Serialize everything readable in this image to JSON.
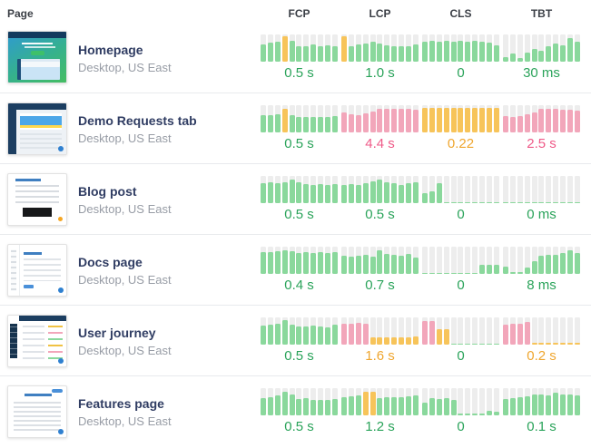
{
  "header": {
    "page_label": "Page",
    "metric_labels": [
      "FCP",
      "LCP",
      "CLS",
      "TBT"
    ]
  },
  "palette": {
    "bar_green": "#8ad89c",
    "bar_orange": "#f7c45a",
    "bar_pink": "#f2a6ba",
    "bar_track": "#ededed",
    "value_green": "#2aa35a",
    "value_orange": "#efa62f",
    "value_pink": "#ef5a88",
    "title_navy": "#303d63",
    "subtitle_gray": "#979ca5"
  },
  "rows": [
    {
      "title": "Homepage",
      "subtitle": "Desktop, US East",
      "thumbnail": "homepage",
      "metrics": [
        {
          "label": "FCP",
          "value": "0.5 s",
          "value_color": "green",
          "bar_colors": [
            "g",
            "g",
            "g",
            "o",
            "g",
            "g",
            "g",
            "g",
            "g",
            "g",
            "g"
          ],
          "bar_heights": [
            0.62,
            0.7,
            0.74,
            0.92,
            0.76,
            0.55,
            0.58,
            0.62,
            0.55,
            0.6,
            0.57
          ]
        },
        {
          "label": "LCP",
          "value": "1.0 s",
          "value_color": "green",
          "bar_colors": [
            "o",
            "g",
            "g",
            "g",
            "g",
            "g",
            "g",
            "g",
            "g",
            "g",
            "g"
          ],
          "bar_heights": [
            0.92,
            0.58,
            0.62,
            0.68,
            0.72,
            0.68,
            0.6,
            0.55,
            0.55,
            0.58,
            0.63
          ]
        },
        {
          "label": "CLS",
          "value": "0",
          "value_color": "green",
          "bar_colors": "g",
          "bar_heights": [
            0.72,
            0.75,
            0.72,
            0.75,
            0.72,
            0.75,
            0.72,
            0.75,
            0.72,
            0.7,
            0.6
          ]
        },
        {
          "label": "TBT",
          "value": "30 ms",
          "value_color": "green",
          "bar_colors": "g",
          "bar_heights": [
            0.18,
            0.3,
            0.12,
            0.32,
            0.45,
            0.4,
            0.58,
            0.65,
            0.6,
            0.88,
            0.72
          ]
        }
      ]
    },
    {
      "title": "Demo Requests tab",
      "subtitle": "Desktop, US East",
      "thumbnail": "demo",
      "metrics": [
        {
          "label": "FCP",
          "value": "0.5 s",
          "value_color": "green",
          "bar_colors": [
            "g",
            "g",
            "g",
            "o",
            "g",
            "g",
            "g",
            "g",
            "g",
            "g",
            "g"
          ],
          "bar_heights": [
            0.62,
            0.62,
            0.68,
            0.85,
            0.62,
            0.55,
            0.58,
            0.55,
            0.55,
            0.58,
            0.6
          ]
        },
        {
          "label": "LCP",
          "value": "4.4 s",
          "value_color": "pink",
          "bar_colors": "p",
          "bar_heights": [
            0.72,
            0.68,
            0.62,
            0.7,
            0.78,
            0.88,
            0.88,
            0.88,
            0.86,
            0.86,
            0.84
          ]
        },
        {
          "label": "CLS",
          "value": "0.22",
          "value_color": "orange",
          "bar_colors": "o",
          "bar_heights": [
            0.9,
            0.9,
            0.9,
            0.9,
            0.9,
            0.9,
            0.9,
            0.9,
            0.9,
            0.9,
            0.9
          ]
        },
        {
          "label": "TBT",
          "value": "2.5 s",
          "value_color": "pink",
          "bar_colors": "p",
          "bar_heights": [
            0.6,
            0.55,
            0.6,
            0.65,
            0.72,
            0.85,
            0.85,
            0.85,
            0.82,
            0.82,
            0.8
          ]
        }
      ]
    },
    {
      "title": "Blog post",
      "subtitle": "Desktop, US East",
      "thumbnail": "blog",
      "metrics": [
        {
          "label": "FCP",
          "value": "0.5 s",
          "value_color": "green",
          "bar_colors": "g",
          "bar_heights": [
            0.72,
            0.75,
            0.72,
            0.78,
            0.88,
            0.75,
            0.7,
            0.68,
            0.7,
            0.65,
            0.7
          ]
        },
        {
          "label": "LCP",
          "value": "0.5 s",
          "value_color": "green",
          "bar_colors": "g",
          "bar_heights": [
            0.68,
            0.7,
            0.68,
            0.72,
            0.8,
            0.85,
            0.78,
            0.72,
            0.68,
            0.72,
            0.75
          ]
        },
        {
          "label": "CLS",
          "value": "0",
          "value_color": "green",
          "bar_colors": "g",
          "bar_heights": [
            0.38,
            0.42,
            0.72,
            0.03,
            0.03,
            0.03,
            0.03,
            0.03,
            0.03,
            0.03,
            0.03
          ]
        },
        {
          "label": "TBT",
          "value": "0 ms",
          "value_color": "green",
          "bar_colors": "g",
          "bar_heights": [
            0.03,
            0.03,
            0.03,
            0.03,
            0.03,
            0.03,
            0.03,
            0.03,
            0.03,
            0.03,
            0.03
          ]
        }
      ]
    },
    {
      "title": "Docs page",
      "subtitle": "Desktop, US East",
      "thumbnail": "docs",
      "metrics": [
        {
          "label": "FCP",
          "value": "0.4 s",
          "value_color": "green",
          "bar_colors": "g",
          "bar_heights": [
            0.8,
            0.8,
            0.82,
            0.86,
            0.82,
            0.78,
            0.8,
            0.78,
            0.8,
            0.78,
            0.8
          ]
        },
        {
          "label": "LCP",
          "value": "0.7 s",
          "value_color": "green",
          "bar_colors": "g",
          "bar_heights": [
            0.68,
            0.62,
            0.65,
            0.7,
            0.62,
            0.85,
            0.72,
            0.7,
            0.68,
            0.72,
            0.6
          ]
        },
        {
          "label": "CLS",
          "value": "0",
          "value_color": "green",
          "bar_colors": "g",
          "bar_heights": [
            0.03,
            0.03,
            0.03,
            0.03,
            0.03,
            0.03,
            0.03,
            0.03,
            0.32,
            0.32,
            0.32
          ]
        },
        {
          "label": "TBT",
          "value": "8 ms",
          "value_color": "green",
          "bar_colors": "g",
          "bar_heights": [
            0.25,
            0.05,
            0.05,
            0.22,
            0.45,
            0.65,
            0.7,
            0.7,
            0.78,
            0.88,
            0.75
          ]
        }
      ]
    },
    {
      "title": "User journey",
      "subtitle": "Desktop, US East",
      "thumbnail": "journey",
      "metrics": [
        {
          "label": "FCP",
          "value": "0.5 s",
          "value_color": "green",
          "bar_colors": "g",
          "bar_heights": [
            0.7,
            0.72,
            0.78,
            0.9,
            0.72,
            0.65,
            0.68,
            0.7,
            0.65,
            0.62,
            0.72
          ]
        },
        {
          "label": "LCP",
          "value": "1.6 s",
          "value_color": "orange",
          "bar_colors": [
            "p",
            "p",
            "p",
            "p",
            "o",
            "o",
            "o",
            "o",
            "o",
            "o",
            "o"
          ],
          "bar_heights": [
            0.78,
            0.78,
            0.8,
            0.78,
            0.25,
            0.25,
            0.25,
            0.25,
            0.25,
            0.28,
            0.3
          ]
        },
        {
          "label": "CLS",
          "value": "0",
          "value_color": "green",
          "bar_colors": [
            "p",
            "p",
            "o",
            "o",
            "g",
            "g",
            "g",
            "g",
            "g",
            "g",
            "g"
          ],
          "bar_heights": [
            0.88,
            0.85,
            0.55,
            0.55,
            0.03,
            0.03,
            0.03,
            0.03,
            0.03,
            0.03,
            0.03
          ]
        },
        {
          "label": "TBT",
          "value": "0.2 s",
          "value_color": "orange",
          "bar_colors": [
            "p",
            "p",
            "p",
            "p",
            "o",
            "o",
            "o",
            "o",
            "o",
            "o",
            "o"
          ],
          "bar_heights": [
            0.72,
            0.75,
            0.78,
            0.82,
            0.08,
            0.08,
            0.08,
            0.08,
            0.08,
            0.08,
            0.08
          ]
        }
      ]
    },
    {
      "title": "Features page",
      "subtitle": "Desktop, US East",
      "thumbnail": "features",
      "metrics": [
        {
          "label": "FCP",
          "value": "0.5 s",
          "value_color": "green",
          "bar_colors": "g",
          "bar_heights": [
            0.62,
            0.68,
            0.72,
            0.88,
            0.78,
            0.6,
            0.62,
            0.58,
            0.55,
            0.58,
            0.6
          ]
        },
        {
          "label": "LCP",
          "value": "1.2 s",
          "value_color": "green",
          "bar_colors": [
            "g",
            "g",
            "g",
            "o",
            "o",
            "g",
            "g",
            "g",
            "g",
            "g",
            "g"
          ],
          "bar_heights": [
            0.65,
            0.7,
            0.72,
            0.88,
            0.85,
            0.62,
            0.65,
            0.68,
            0.65,
            0.7,
            0.72
          ]
        },
        {
          "label": "CLS",
          "value": "0",
          "value_color": "green",
          "bar_colors": "g",
          "bar_heights": [
            0.45,
            0.62,
            0.6,
            0.62,
            0.58,
            0.05,
            0.05,
            0.05,
            0.05,
            0.18,
            0.12
          ]
        },
        {
          "label": "TBT",
          "value": "0.1 s",
          "value_color": "green",
          "bar_colors": "g",
          "bar_heights": [
            0.6,
            0.62,
            0.65,
            0.7,
            0.75,
            0.78,
            0.72,
            0.82,
            0.78,
            0.75,
            0.72
          ]
        }
      ]
    }
  ]
}
